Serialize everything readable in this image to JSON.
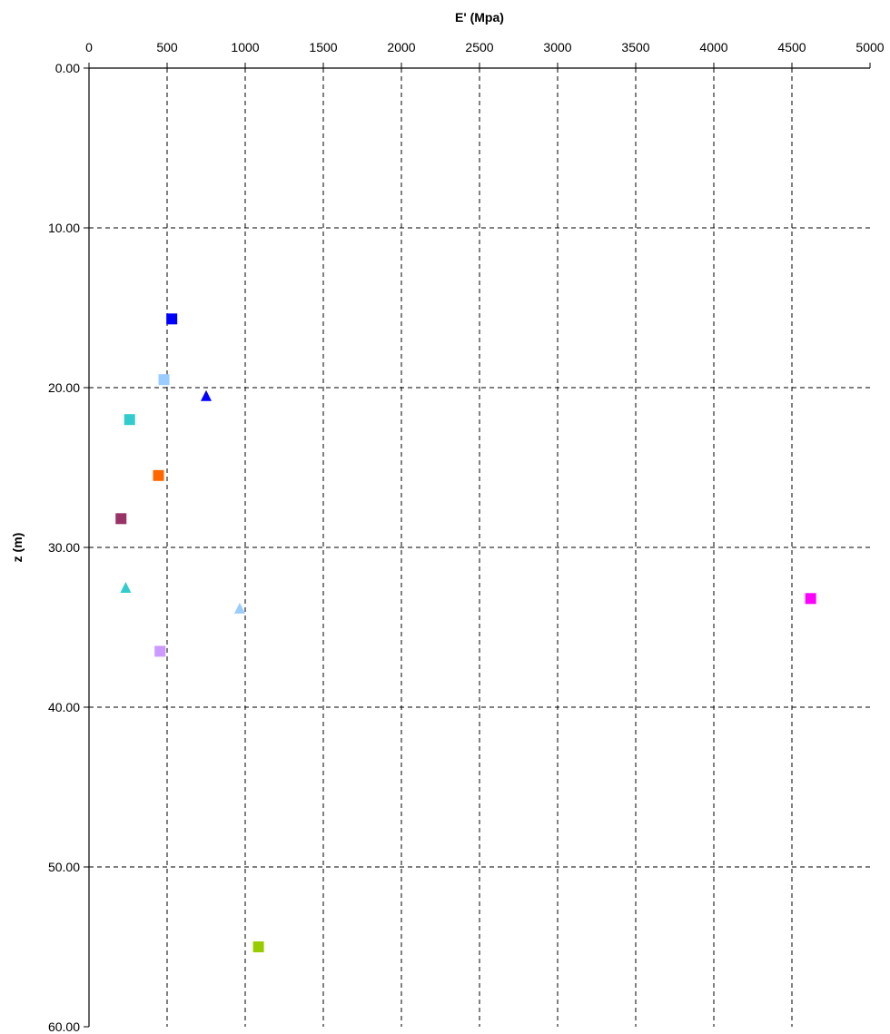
{
  "chart_data": {
    "type": "scatter",
    "title": "",
    "xlabel": "E' (Mpa)",
    "ylabel": "z (m)",
    "x_axis_position": "top",
    "y_axis_inverted": true,
    "xlim": [
      0,
      5000
    ],
    "ylim": [
      0,
      60
    ],
    "x_ticks": [
      0,
      500,
      1000,
      1500,
      2000,
      2500,
      3000,
      3500,
      4000,
      4500,
      5000
    ],
    "y_ticks": [
      0,
      10,
      20,
      30,
      40,
      50,
      60
    ],
    "x_tick_labels": [
      "0",
      "500",
      "1000",
      "1500",
      "2000",
      "2500",
      "3000",
      "3500",
      "4000",
      "4500",
      "5000"
    ],
    "y_tick_labels": [
      "0.00",
      "10.00",
      "20.00",
      "30.00",
      "40.00",
      "50.00",
      "60.00"
    ],
    "grid": true,
    "grid_style": "dashed",
    "legend": false,
    "series": [
      {
        "marker": "square",
        "color": "#0000FF",
        "x": [
          530
        ],
        "y": [
          15.7
        ]
      },
      {
        "marker": "square",
        "color": "#99CCFF",
        "x": [
          480
        ],
        "y": [
          19.5
        ]
      },
      {
        "marker": "triangle",
        "color": "#0000FF",
        "x": [
          750
        ],
        "y": [
          20.5
        ]
      },
      {
        "marker": "square",
        "color": "#33CCCC",
        "x": [
          260
        ],
        "y": [
          22.0
        ]
      },
      {
        "marker": "square",
        "color": "#FF6600",
        "x": [
          445
        ],
        "y": [
          25.5
        ]
      },
      {
        "marker": "square",
        "color": "#993366",
        "x": [
          205
        ],
        "y": [
          28.2
        ]
      },
      {
        "marker": "triangle",
        "color": "#33CCCC",
        "x": [
          235
        ],
        "y": [
          32.5
        ]
      },
      {
        "marker": "square",
        "color": "#FF00FF",
        "x": [
          4620
        ],
        "y": [
          33.2
        ]
      },
      {
        "marker": "triangle",
        "color": "#99CCFF",
        "x": [
          965
        ],
        "y": [
          33.8
        ]
      },
      {
        "marker": "square",
        "color": "#CC99FF",
        "x": [
          455
        ],
        "y": [
          36.5
        ]
      },
      {
        "marker": "square",
        "color": "#99CC00",
        "x": [
          1085
        ],
        "y": [
          55.0
        ]
      }
    ]
  }
}
